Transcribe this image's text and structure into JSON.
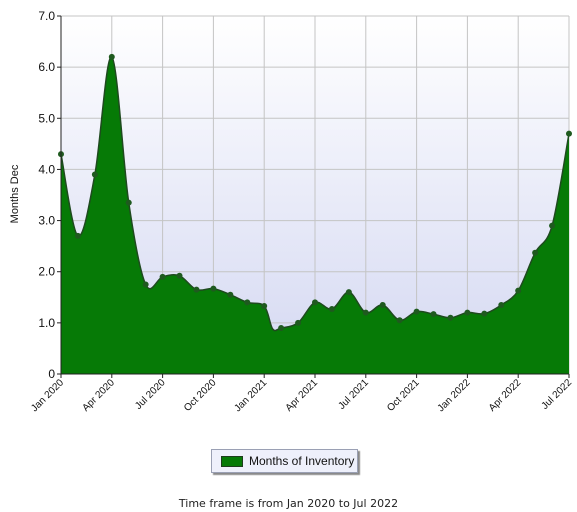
{
  "chart_data": {
    "type": "area",
    "ylabel": "Months Dec",
    "ylim": [
      0,
      7
    ],
    "yticks": [
      "0",
      "1.0",
      "2.0",
      "3.0",
      "4.0",
      "5.0",
      "6.0",
      "7.0"
    ],
    "ytick_values": [
      0,
      1,
      2,
      3,
      4,
      5,
      6,
      7
    ],
    "xticks": [
      {
        "label": "Jan 2020",
        "month": 0
      },
      {
        "label": "Apr 2020",
        "month": 3
      },
      {
        "label": "Jul 2020",
        "month": 6
      },
      {
        "label": "Oct 2020",
        "month": 9
      },
      {
        "label": "Jan 2021",
        "month": 12
      },
      {
        "label": "Apr 2021",
        "month": 15
      },
      {
        "label": "Jul 2021",
        "month": 18
      },
      {
        "label": "Oct 2021",
        "month": 21
      },
      {
        "label": "Jan 2022",
        "month": 24
      },
      {
        "label": "Apr 2022",
        "month": 27
      },
      {
        "label": "Jul 2022",
        "month": 30
      }
    ],
    "x_range": [
      0,
      30
    ],
    "grid": true,
    "series": [
      {
        "name": "Months of Inventory",
        "color": "#067a06",
        "x": [
          0,
          1,
          2,
          3,
          4,
          5,
          6,
          7,
          8,
          9,
          10,
          11,
          12,
          13,
          14,
          15,
          16,
          17,
          18,
          19,
          20,
          21,
          22,
          23,
          24,
          25,
          26,
          27,
          28,
          29,
          30
        ],
        "values": [
          4.3,
          2.7,
          3.9,
          6.2,
          3.35,
          1.75,
          1.9,
          1.92,
          1.65,
          1.67,
          1.55,
          1.4,
          1.33,
          0.9,
          1.0,
          1.4,
          1.27,
          1.6,
          1.2,
          1.35,
          1.05,
          1.22,
          1.17,
          1.1,
          1.2,
          1.18,
          1.35,
          1.63,
          2.37,
          2.9,
          4.7
        ],
        "mid_values": [
          null,
          null,
          null,
          null,
          null,
          null,
          null,
          null,
          null,
          null,
          null,
          null,
          0.88,
          null,
          null,
          null,
          null,
          null,
          null,
          null,
          null,
          null,
          null,
          null,
          null,
          null,
          null,
          null,
          null,
          null,
          null
        ]
      }
    ]
  },
  "legend": {
    "label": "Months of Inventory",
    "color": "#067a06"
  },
  "caption": "Time frame is from Jan 2020 to Jul 2022",
  "colors": {
    "plot_top": "#ffffff",
    "plot_bottom": "#d4d8f2",
    "grid": "#c4c4c4",
    "line": "#1f4a1f",
    "area": "#067a06",
    "marker": "#1f5a1f"
  }
}
